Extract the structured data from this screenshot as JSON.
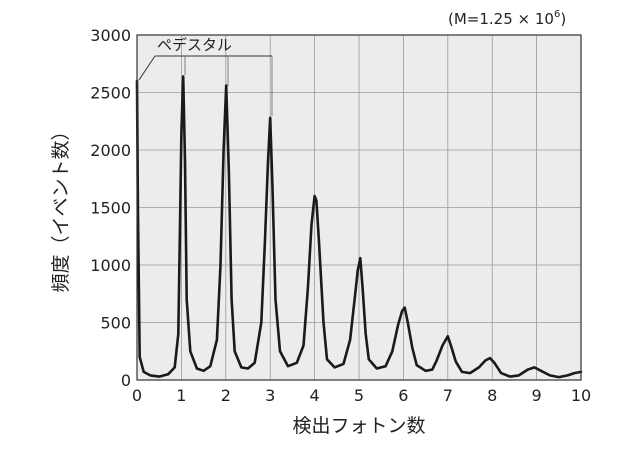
{
  "chart_data": {
    "type": "line",
    "xlabel": "検出フォトン数",
    "ylabel": "頻度（イベント数）",
    "annotation_top_right": "(M=1.25 × 10",
    "annotation_exponent": "6",
    "pedestal_label": "ペデスタル",
    "xlim": [
      0,
      10
    ],
    "ylim": [
      0,
      3000
    ],
    "x_ticks": [
      "0",
      "1",
      "2",
      "3",
      "4",
      "5",
      "6",
      "7",
      "8",
      "9",
      "10"
    ],
    "y_ticks": [
      "0",
      "500",
      "1000",
      "1500",
      "2000",
      "2500",
      "3000"
    ],
    "grid": true,
    "series": [
      {
        "color": "#1a1a1a",
        "points": [
          [
            0.0,
            2600
          ],
          [
            0.02,
            1500
          ],
          [
            0.06,
            200
          ],
          [
            0.15,
            70
          ],
          [
            0.3,
            40
          ],
          [
            0.5,
            30
          ],
          [
            0.7,
            50
          ],
          [
            0.85,
            110
          ],
          [
            0.93,
            400
          ],
          [
            0.97,
            1400
          ],
          [
            1.0,
            2150
          ],
          [
            1.04,
            2640
          ],
          [
            1.08,
            1900
          ],
          [
            1.12,
            700
          ],
          [
            1.2,
            250
          ],
          [
            1.35,
            100
          ],
          [
            1.5,
            80
          ],
          [
            1.65,
            120
          ],
          [
            1.8,
            350
          ],
          [
            1.88,
            1000
          ],
          [
            1.95,
            2000
          ],
          [
            2.01,
            2560
          ],
          [
            2.07,
            1800
          ],
          [
            2.13,
            700
          ],
          [
            2.2,
            250
          ],
          [
            2.35,
            110
          ],
          [
            2.5,
            100
          ],
          [
            2.65,
            150
          ],
          [
            2.8,
            500
          ],
          [
            2.88,
            1200
          ],
          [
            2.95,
            1900
          ],
          [
            3.0,
            2280
          ],
          [
            3.05,
            1700
          ],
          [
            3.12,
            700
          ],
          [
            3.22,
            250
          ],
          [
            3.4,
            120
          ],
          [
            3.6,
            150
          ],
          [
            3.75,
            300
          ],
          [
            3.85,
            800
          ],
          [
            3.93,
            1350
          ],
          [
            4.0,
            1600
          ],
          [
            4.04,
            1560
          ],
          [
            4.1,
            1200
          ],
          [
            4.2,
            500
          ],
          [
            4.28,
            180
          ],
          [
            4.45,
            110
          ],
          [
            4.65,
            140
          ],
          [
            4.8,
            350
          ],
          [
            4.9,
            700
          ],
          [
            4.97,
            950
          ],
          [
            5.03,
            1060
          ],
          [
            5.08,
            800
          ],
          [
            5.15,
            400
          ],
          [
            5.22,
            180
          ],
          [
            5.4,
            100
          ],
          [
            5.6,
            120
          ],
          [
            5.75,
            250
          ],
          [
            5.88,
            480
          ],
          [
            5.97,
            600
          ],
          [
            6.03,
            630
          ],
          [
            6.1,
            500
          ],
          [
            6.2,
            280
          ],
          [
            6.3,
            130
          ],
          [
            6.5,
            80
          ],
          [
            6.65,
            90
          ],
          [
            6.75,
            170
          ],
          [
            6.88,
            300
          ],
          [
            7.0,
            380
          ],
          [
            7.07,
            300
          ],
          [
            7.18,
            160
          ],
          [
            7.32,
            70
          ],
          [
            7.5,
            60
          ],
          [
            7.7,
            110
          ],
          [
            7.85,
            170
          ],
          [
            7.95,
            190
          ],
          [
            8.05,
            150
          ],
          [
            8.2,
            60
          ],
          [
            8.4,
            30
          ],
          [
            8.6,
            40
          ],
          [
            8.8,
            90
          ],
          [
            8.95,
            110
          ],
          [
            9.1,
            80
          ],
          [
            9.3,
            40
          ],
          [
            9.5,
            25
          ],
          [
            9.7,
            40
          ],
          [
            9.85,
            60
          ],
          [
            10.0,
            70
          ]
        ]
      }
    ]
  }
}
